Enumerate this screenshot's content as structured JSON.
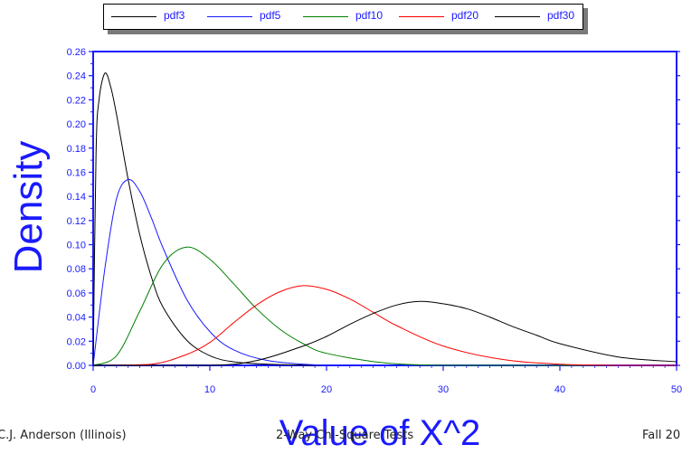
{
  "chart_data": {
    "type": "line",
    "title": "",
    "xlabel": "Value of X^2",
    "ylabel": "Density",
    "xlim": [
      0,
      50
    ],
    "ylim": [
      0,
      0.26
    ],
    "x_ticks": [
      0,
      10,
      20,
      30,
      40,
      50
    ],
    "x_tick_labels": [
      "0",
      "10",
      "20",
      "30",
      "40",
      "50"
    ],
    "y_ticks": [
      0,
      0.02,
      0.04,
      0.06,
      0.08,
      0.1,
      0.12,
      0.14,
      0.16,
      0.18,
      0.2,
      0.22,
      0.24,
      0.26
    ],
    "y_tick_labels": [
      "0.00",
      "0.02",
      "0.04",
      "0.06",
      "0.08",
      "0.10",
      "0.12",
      "0.14",
      "0.16",
      "0.18",
      "0.20",
      "0.22",
      "0.24",
      "0.26"
    ],
    "grid": false,
    "legend_position": "top",
    "series": [
      {
        "name": "pdf3",
        "color": "#000000",
        "df": 3,
        "x": [
          0,
          0.25,
          0.5,
          1,
          1.5,
          2,
          3,
          4,
          5,
          6,
          8,
          10,
          12,
          15,
          20,
          30,
          50
        ],
        "y": [
          0,
          0.176,
          0.22,
          0.242,
          0.231,
          0.208,
          0.154,
          0.108,
          0.073,
          0.048,
          0.021,
          0.008,
          0.003,
          0.001,
          0.0,
          0.0,
          0.0
        ]
      },
      {
        "name": "pdf5",
        "color": "#1a1aff",
        "df": 5,
        "x": [
          0,
          1,
          2,
          3,
          4,
          5,
          6,
          8,
          10,
          12,
          15,
          20,
          25,
          30,
          50
        ],
        "y": [
          0,
          0.08,
          0.138,
          0.154,
          0.144,
          0.122,
          0.097,
          0.055,
          0.028,
          0.013,
          0.004,
          0.0,
          0.0,
          0.0,
          0.0
        ]
      },
      {
        "name": "pdf10",
        "color": "#008000",
        "df": 10,
        "x": [
          0,
          2,
          4,
          6,
          8,
          10,
          12,
          14,
          16,
          18,
          20,
          25,
          30,
          35,
          50
        ],
        "y": [
          0,
          0.008,
          0.045,
          0.084,
          0.098,
          0.088,
          0.068,
          0.047,
          0.03,
          0.018,
          0.01,
          0.002,
          0.0,
          0.0,
          0.0
        ]
      },
      {
        "name": "pdf20",
        "color": "#ff0000",
        "df": 20,
        "x": [
          0,
          5,
          8,
          10,
          12,
          14,
          16,
          18,
          20,
          22,
          24,
          26,
          30,
          35,
          40,
          45,
          50
        ],
        "y": [
          0,
          0.001,
          0.009,
          0.019,
          0.035,
          0.05,
          0.061,
          0.066,
          0.063,
          0.055,
          0.044,
          0.033,
          0.016,
          0.005,
          0.001,
          0.0,
          0.0
        ]
      },
      {
        "name": "pdf30",
        "color": "#000000",
        "df": 30,
        "x": [
          0,
          10,
          14,
          18,
          20,
          22,
          24,
          26,
          28,
          30,
          32,
          34,
          36,
          38,
          40,
          45,
          50
        ],
        "y": [
          0,
          0.0,
          0.004,
          0.016,
          0.024,
          0.034,
          0.043,
          0.05,
          0.053,
          0.051,
          0.047,
          0.04,
          0.032,
          0.025,
          0.018,
          0.007,
          0.003
        ]
      }
    ]
  },
  "footer": {
    "left": "C.J. Anderson  (Illinois)",
    "center": "2-Way Chi-Square Tests",
    "right": "Fall 20"
  },
  "colors": {
    "axis": "#1a1aff",
    "label_text": "#1a1aff"
  }
}
